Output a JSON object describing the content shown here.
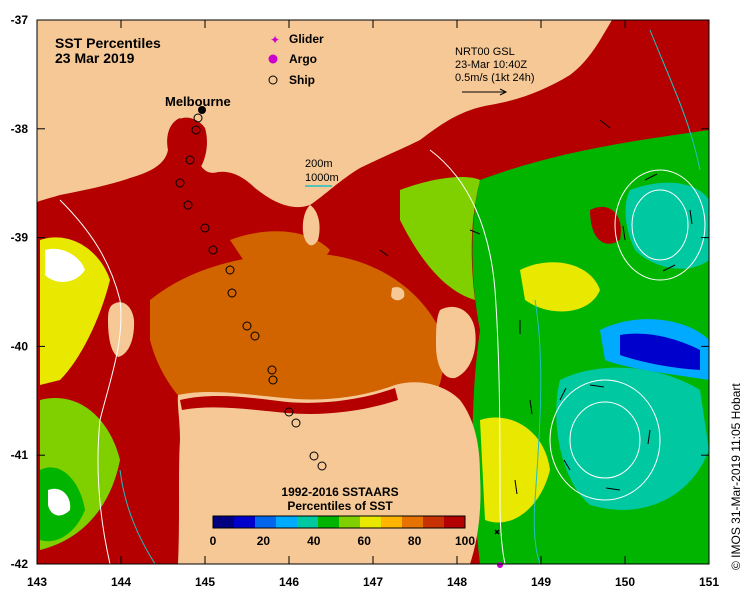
{
  "title": {
    "line1": "SST Percentiles",
    "line2": "23 Mar 2019"
  },
  "legend": {
    "glider": "Glider",
    "argo": "Argo",
    "ship": "Ship",
    "glider_color": "#cc00cc",
    "argo_color": "#cc00cc",
    "ship_color": "#000000"
  },
  "current": {
    "line1": "NRT00 GSL",
    "line2": "23-Mar 10:40Z",
    "line3": "0.5m/s (1kt 24h)"
  },
  "isobaths": {
    "line1": "200m",
    "line2": "1000m",
    "color_200": "#ffffff",
    "color_1000": "#20c0c0"
  },
  "place": "Melbourne",
  "colorbar": {
    "title1": "1992-2016 SSTAARS",
    "title2": "Percentiles of SST",
    "ticks": [
      "0",
      "20",
      "40",
      "60",
      "80",
      "100"
    ],
    "colors": [
      "#000080",
      "#0000cc",
      "#0066ee",
      "#00aaff",
      "#00c8a0",
      "#00b400",
      "#80d000",
      "#e8e800",
      "#ffb400",
      "#e67300",
      "#c83200",
      "#b40000"
    ]
  },
  "axes": {
    "lon_ticks": [
      "143",
      "144",
      "145",
      "146",
      "147",
      "148",
      "149",
      "150",
      "151"
    ],
    "lat_ticks": [
      "-37",
      "-38",
      "-39",
      "-40",
      "-41",
      "-42"
    ]
  },
  "credit": "©  IMOS 31-Mar-2019 11:05 Hobart",
  "colors": {
    "land": "#f5c896",
    "high_percentile": "#b40000",
    "mid_high_percentile": "#d26400"
  }
}
